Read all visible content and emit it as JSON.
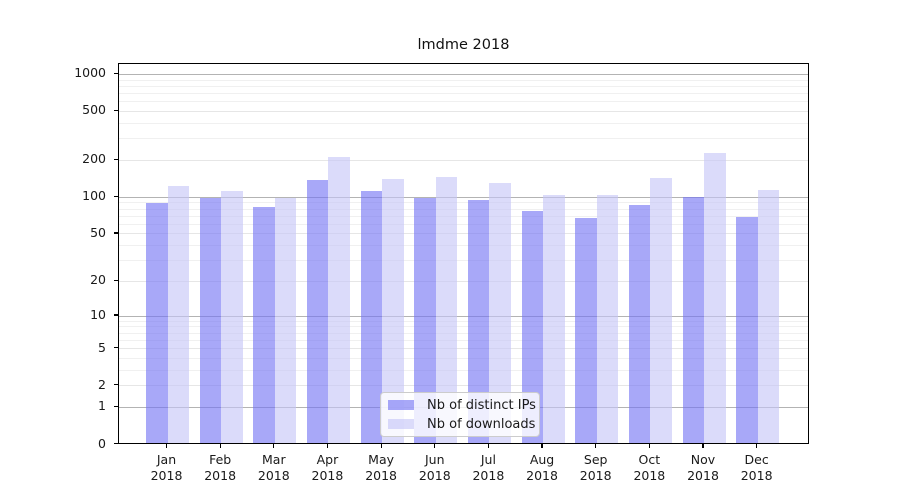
{
  "chart_data": {
    "type": "bar",
    "title": "lmdme 2018",
    "categories": [
      "Jan",
      "Feb",
      "Mar",
      "Apr",
      "May",
      "Jun",
      "Jul",
      "Aug",
      "Sep",
      "Oct",
      "Nov",
      "Dec"
    ],
    "year_label": "2018",
    "series": [
      {
        "name": "Nb of distinct IPs",
        "color": "#a8a8f8",
        "fill_rgba": "rgba(115,115,244,0.62)",
        "values": [
          87,
          95,
          80,
          134,
          108,
          95,
          91,
          75,
          65,
          84,
          97,
          67
        ]
      },
      {
        "name": "Nb of downloads",
        "color": "#dbdbfa",
        "fill_rgba": "rgba(197,197,247,0.62)",
        "values": [
          120,
          108,
          95,
          207,
          137,
          142,
          125,
          100,
          100,
          138,
          222,
          110
        ]
      }
    ],
    "yticks": [
      0,
      1,
      2,
      5,
      10,
      20,
      50,
      100,
      200,
      500,
      1000
    ],
    "yscale": "log1p",
    "ylim": [
      0,
      1400
    ],
    "xlabel": "",
    "ylabel": "",
    "grid": true,
    "grid_color_major": "#b3b3b3",
    "grid_color_minor": "#f0f0f0",
    "legend_position": "lower center",
    "spine_color": "#000000",
    "background": "#ffffff"
  }
}
